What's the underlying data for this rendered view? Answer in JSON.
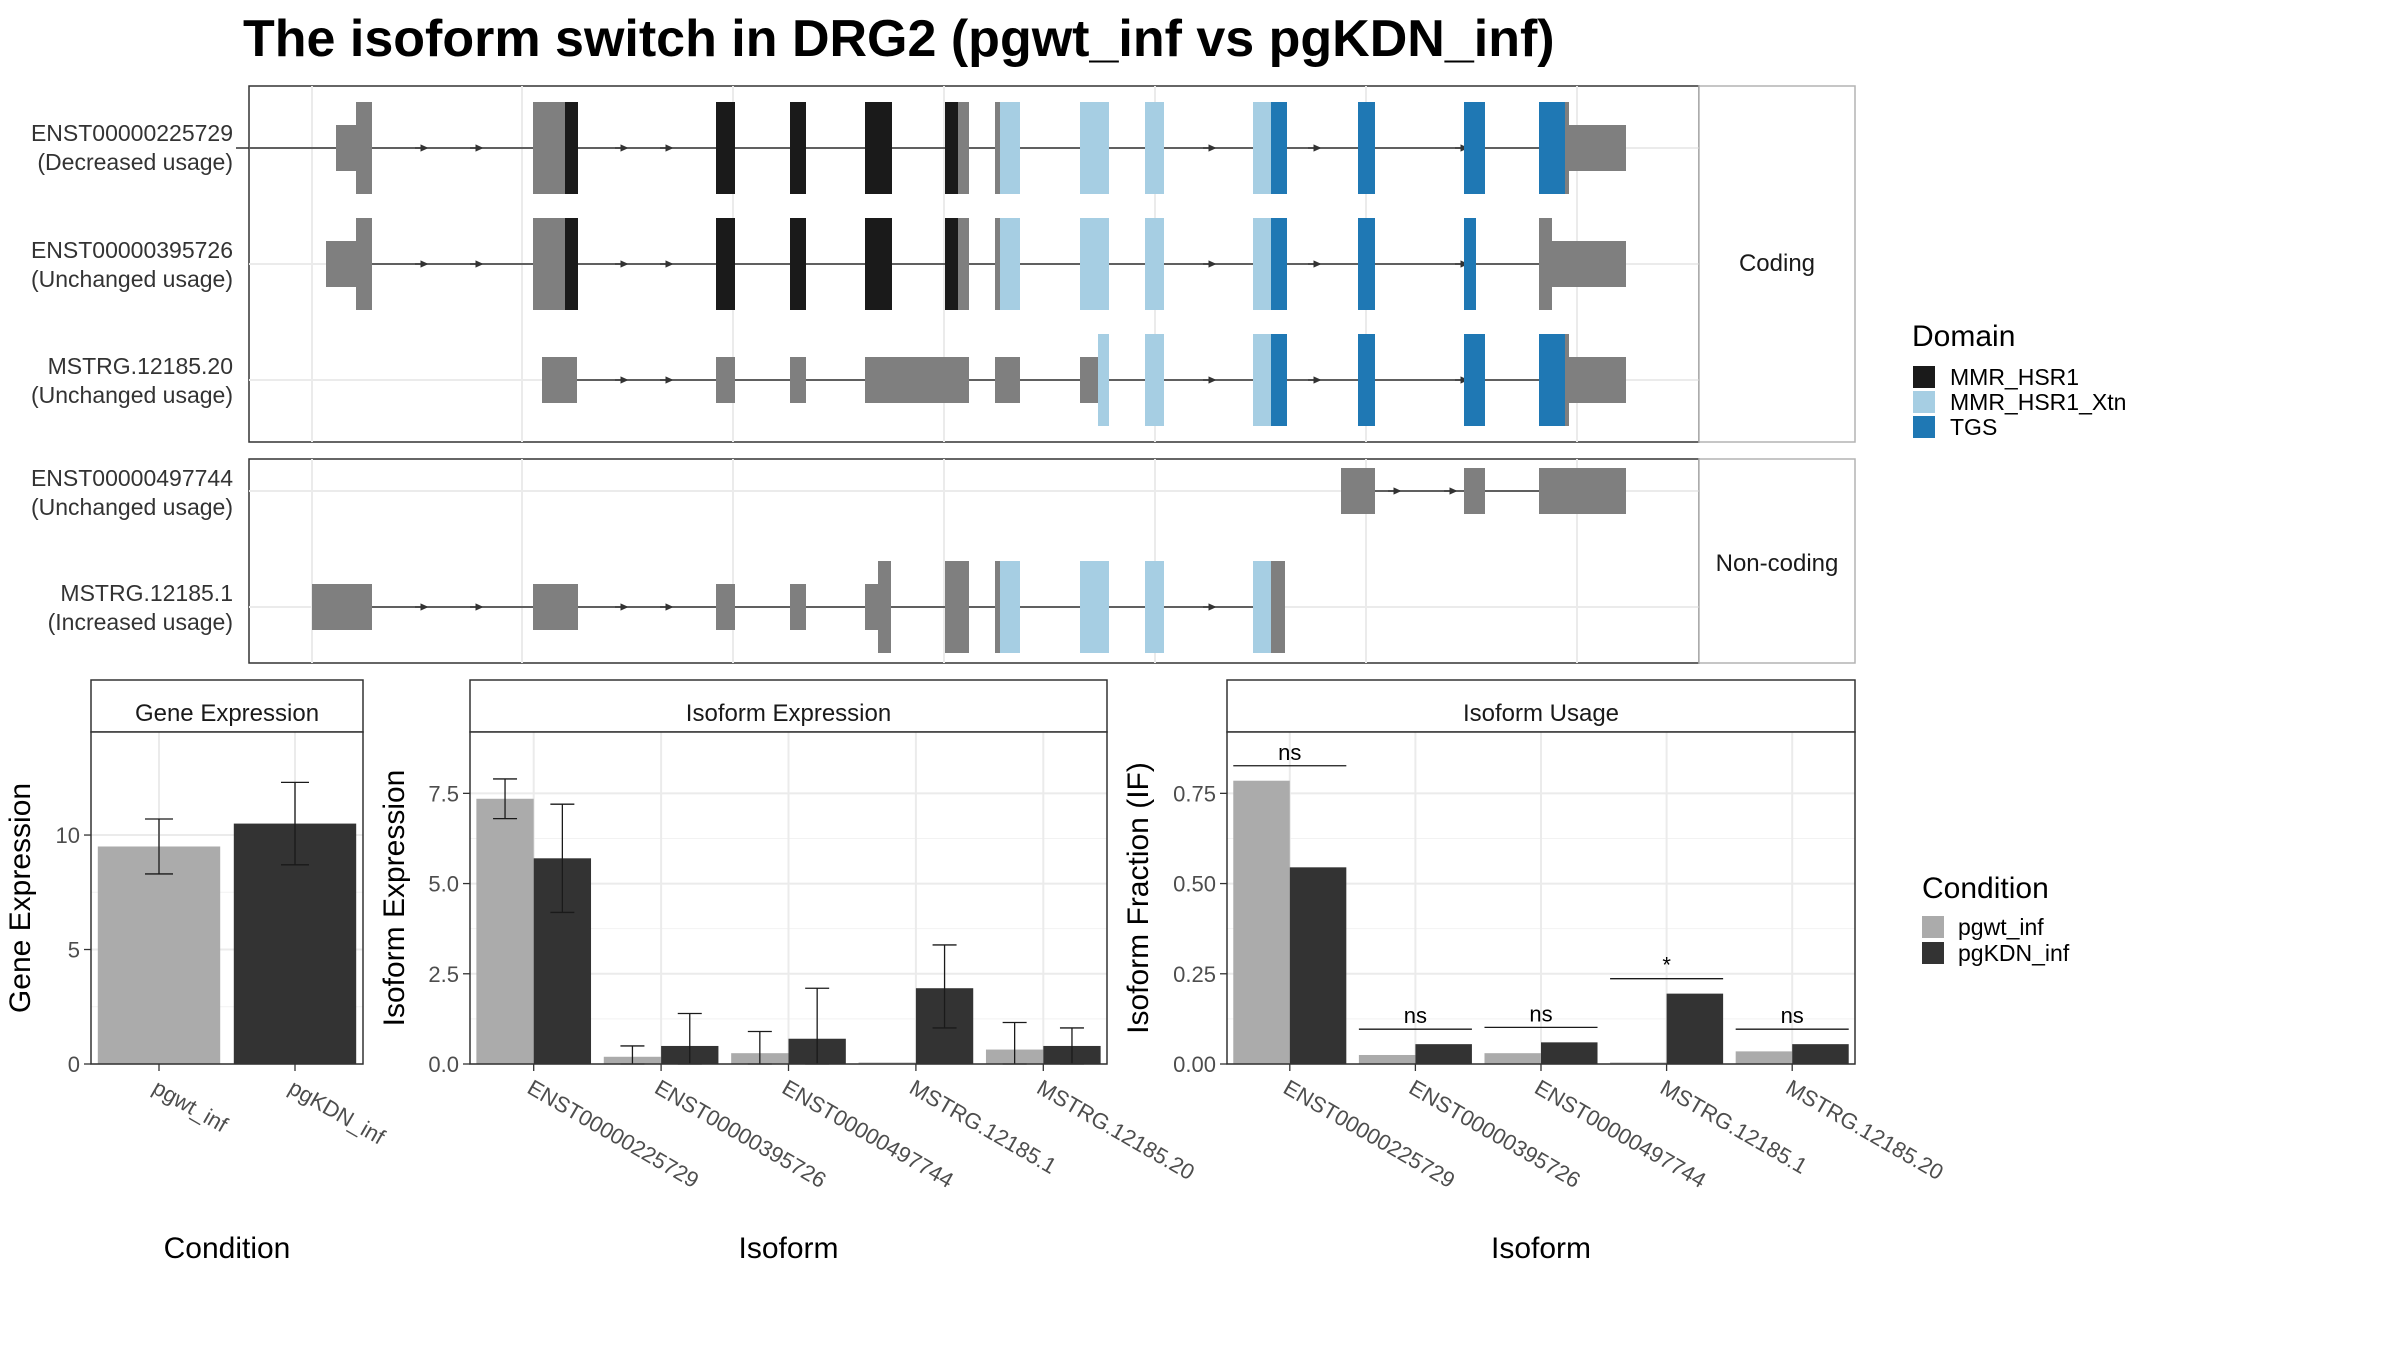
{
  "title": "The isoform switch in DRG2 (pgwt_inf vs pgKDN_inf)",
  "structure_panel": {
    "groups": [
      {
        "label": "Coding",
        "isoforms": [
          {
            "id": "ENST00000225729",
            "usage": "(Decreased usage)"
          },
          {
            "id": "ENST00000395726",
            "usage": "(Unchanged usage)"
          },
          {
            "id": "MSTRG.12185.20",
            "usage": "(Unchanged usage)"
          }
        ]
      },
      {
        "label": "Non-coding",
        "isoforms": [
          {
            "id": "ENST00000497744",
            "usage": "(Unchanged usage)"
          },
          {
            "id": "MSTRG.12185.1",
            "usage": "(Increased usage)"
          }
        ]
      }
    ],
    "domain_legend": {
      "title": "Domain",
      "items": [
        {
          "name": "MMR_HSR1",
          "color": "#1a1a1a"
        },
        {
          "name": "MMR_HSR1_Xtn",
          "color": "#a6cee3"
        },
        {
          "name": "TGS",
          "color": "#1f78b4"
        }
      ]
    },
    "exon_color": "#7f7f7f"
  },
  "condition_legend": {
    "title": "Condition",
    "items": [
      {
        "name": "pgwt_inf",
        "color": "#ababab"
      },
      {
        "name": "pgKDN_inf",
        "color": "#333333"
      }
    ]
  },
  "chart_data": [
    {
      "type": "bar",
      "title": "Gene Expression",
      "xlabel": "Condition",
      "ylabel": "Gene Expression",
      "categories": [
        "pgwt_inf",
        "pgKDN_inf"
      ],
      "values": [
        9.5,
        10.5
      ],
      "error_low": [
        8.3,
        8.7
      ],
      "error_high": [
        10.7,
        12.3
      ],
      "ylim": [
        0,
        14.5
      ],
      "yticks": [
        0,
        5,
        10
      ],
      "colors": [
        "#ababab",
        "#333333"
      ]
    },
    {
      "type": "bar",
      "title": "Isoform Expression",
      "xlabel": "Isoform",
      "ylabel": "Isoform Expression",
      "categories": [
        "ENST00000225729",
        "ENST00000395726",
        "ENST00000497744",
        "MSTRG.12185.1",
        "MSTRG.12185.20"
      ],
      "series": [
        {
          "name": "pgwt_inf",
          "values": [
            7.35,
            0.2,
            0.3,
            0.0,
            0.4
          ],
          "error_low": [
            6.8,
            0.0,
            0.0,
            0.0,
            0.0
          ],
          "error_high": [
            7.9,
            0.5,
            0.9,
            0.0,
            1.15
          ]
        },
        {
          "name": "pgKDN_inf",
          "values": [
            5.7,
            0.5,
            0.7,
            2.1,
            0.5
          ],
          "error_low": [
            4.2,
            0.0,
            0.0,
            1.0,
            0.0
          ],
          "error_high": [
            7.2,
            1.4,
            2.1,
            3.3,
            1.0
          ]
        }
      ],
      "ylim": [
        0,
        9.2
      ],
      "yticks": [
        "0.0",
        "2.5",
        "5.0",
        "7.5"
      ]
    },
    {
      "type": "bar",
      "title": "Isoform Usage",
      "xlabel": "Isoform",
      "ylabel": "Isoform Fraction (IF)",
      "categories": [
        "ENST00000225729",
        "ENST00000395726",
        "ENST00000497744",
        "MSTRG.12185.1",
        "MSTRG.12185.20"
      ],
      "series": [
        {
          "name": "pgwt_inf",
          "values": [
            0.785,
            0.025,
            0.03,
            0.0,
            0.035
          ]
        },
        {
          "name": "pgKDN_inf",
          "values": [
            0.545,
            0.055,
            0.06,
            0.195,
            0.055
          ]
        }
      ],
      "significance": [
        "ns",
        "ns",
        "ns",
        "*",
        "ns"
      ],
      "ylim": [
        0,
        0.92
      ],
      "yticks": [
        "0.00",
        "0.25",
        "0.50",
        "0.75"
      ]
    }
  ]
}
